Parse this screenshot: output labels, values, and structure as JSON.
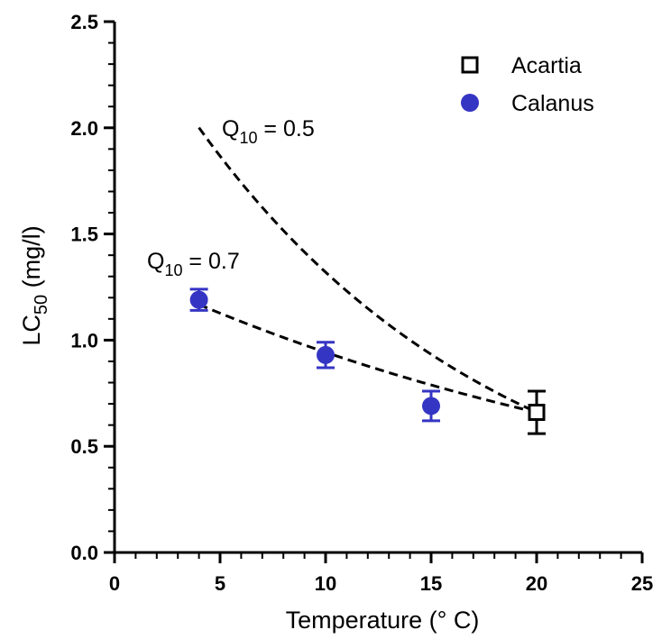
{
  "chart_data": {
    "type": "scatter",
    "xlabel": "Temperature (° C)",
    "ylabel": {
      "main": "LC",
      "sub": "50",
      "rest": " (mg/l)"
    },
    "xlim": [
      0,
      25
    ],
    "ylim": [
      0,
      2.5
    ],
    "x_ticks": [
      "0",
      "5",
      "10",
      "15",
      "20",
      "25"
    ],
    "y_ticks": [
      "0.0",
      "0.5",
      "1.0",
      "1.5",
      "2.0",
      "2.5"
    ],
    "grid": false,
    "legend_position": "top-right",
    "series": [
      {
        "name": "Acartia",
        "marker": "open-square",
        "color": "#000000",
        "points": [
          {
            "x": 20,
            "y": 0.66,
            "err": 0.1
          }
        ]
      },
      {
        "name": "Calanus",
        "marker": "filled-circle",
        "color": "#3535c4",
        "points": [
          {
            "x": 4,
            "y": 1.19,
            "err": 0.05
          },
          {
            "x": 10,
            "y": 0.93,
            "err": 0.06
          },
          {
            "x": 15,
            "y": 0.69,
            "err": 0.07
          }
        ]
      }
    ],
    "fit_curves": [
      {
        "q10": "0.5",
        "label_prefix": "Q",
        "label_sub": "10",
        "label_rest": " = 0.5",
        "q10_value": 0.5,
        "x_range": [
          4,
          20
        ],
        "ref_x": 20,
        "ref_y": 0.66
      },
      {
        "q10": "0.7",
        "label_prefix": "Q",
        "label_sub": "10",
        "label_rest": " = 0.7",
        "q10_value": 0.7,
        "x_range": [
          4,
          20
        ],
        "ref_x": 20,
        "ref_y": 0.66
      }
    ]
  }
}
